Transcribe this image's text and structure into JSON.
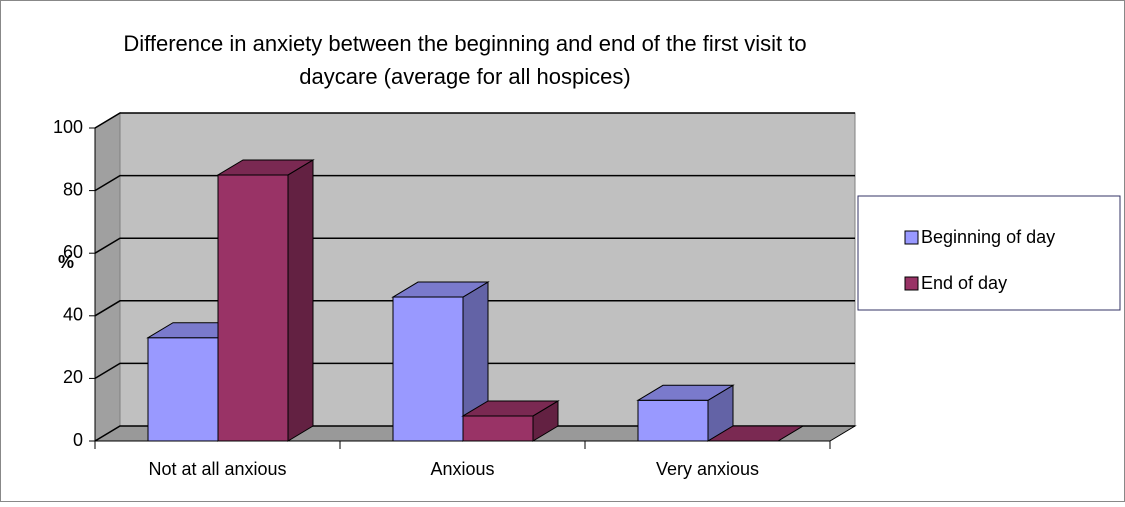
{
  "chart_data": {
    "type": "bar3d",
    "title": [
      "Difference in anxiety between the beginning and end of the first visit to",
      "daycare (average for all hospices)"
    ],
    "y_label": "%",
    "categories": [
      "Not at all anxious",
      "Anxious",
      "Very anxious"
    ],
    "series": [
      {
        "name": "Beginning of day",
        "color": "#9999ff",
        "values": [
          33,
          46,
          13
        ]
      },
      {
        "name": "End of day",
        "color": "#993366",
        "values": [
          85,
          8,
          0
        ]
      }
    ],
    "ylim": [
      0,
      100
    ],
    "yticks": [
      0,
      20,
      40,
      60,
      80,
      100
    ],
    "grid": true,
    "legend": "right"
  }
}
